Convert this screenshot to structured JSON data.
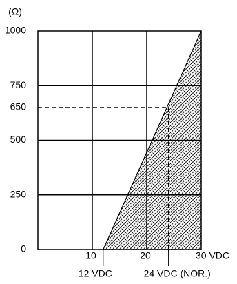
{
  "chart_data": {
    "type": "area",
    "y_unit_label": "(Ω)",
    "xlim": [
      0,
      30
    ],
    "xticks": [
      10,
      20,
      {
        "value": 30,
        "label": "30 VDC"
      }
    ],
    "ylim": [
      0,
      1000
    ],
    "yticks": [
      0,
      250,
      500,
      650,
      750,
      1000
    ],
    "grid": true,
    "series": [
      {
        "x": [
          12,
          30
        ],
        "values": [
          0,
          1000
        ],
        "color": "#000000"
      }
    ],
    "reference": {
      "x": 24,
      "y": 650
    },
    "annotations": [
      {
        "text": "12 VDC",
        "x": 12
      },
      {
        "text": "24 VDC (NOR.)",
        "x": 24
      }
    ]
  }
}
